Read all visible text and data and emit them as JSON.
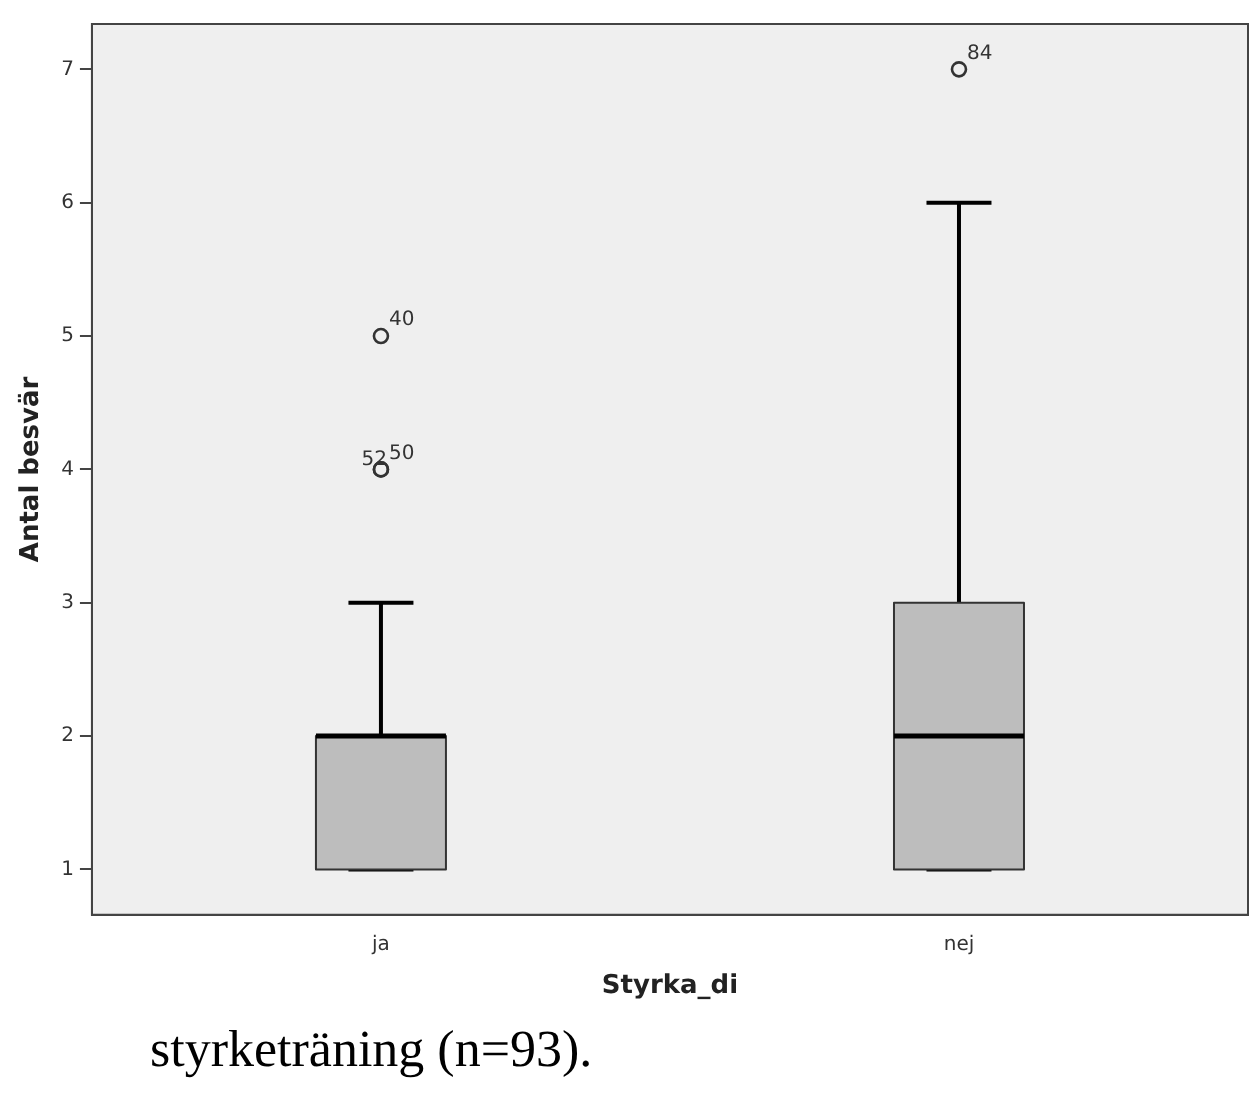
{
  "chart_data": {
    "type": "box",
    "xlabel": "Styrka_di",
    "ylabel": "Antal besvär",
    "categories": [
      "ja",
      "nej"
    ],
    "color": "#bdbdbd",
    "boxes": [
      {
        "low": 1,
        "q1": 1,
        "median": 2,
        "q3": 2,
        "high": 3,
        "outliers": [
          4,
          4,
          5
        ]
      },
      {
        "low": 1,
        "q1": 1,
        "median": 2,
        "q3": 3,
        "high": 6,
        "outliers": [
          7
        ]
      }
    ],
    "ylim": [
      0.66,
      7.34
    ],
    "yticks": [
      1,
      2,
      3,
      4,
      5,
      6,
      7
    ],
    "annotations": [
      "52",
      "50",
      "40",
      "84",
      "styrketräning (n=93)."
    ]
  }
}
